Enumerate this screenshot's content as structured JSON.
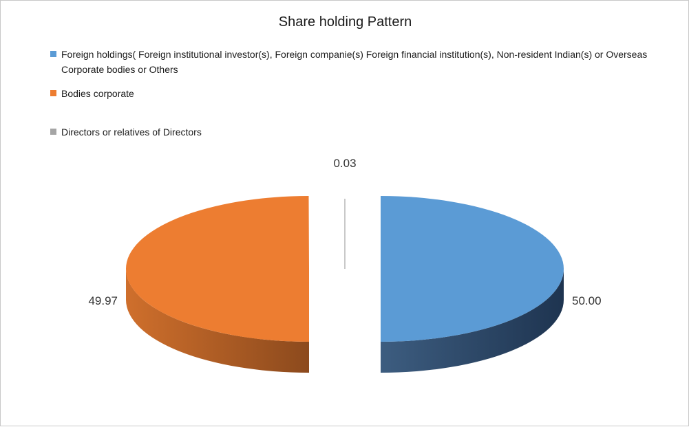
{
  "chart_data": {
    "type": "pie",
    "title": "Share holding Pattern",
    "series": [
      {
        "name": "Foreign holdings( Foreign institutional investor(s), Foreign companie(s) Foreign financial institution(s), Non-resident Indian(s) or Overseas Corporate bodies or Others",
        "value": 50.0,
        "label": "50.00",
        "color": "#5b9bd5",
        "side_color": "#243a53"
      },
      {
        "name": "Bodies corporate",
        "value": 49.97,
        "label": "49.97",
        "color": "#ed7d31",
        "side_color": "#a9561f"
      },
      {
        "name": "Directors or relatives of Directors",
        "value": 0.03,
        "label": "0.03",
        "color": "#a5a5a5",
        "side_color": "#7f7f7f"
      }
    ],
    "legend_position": "top",
    "exploded": true,
    "three_d": true
  }
}
